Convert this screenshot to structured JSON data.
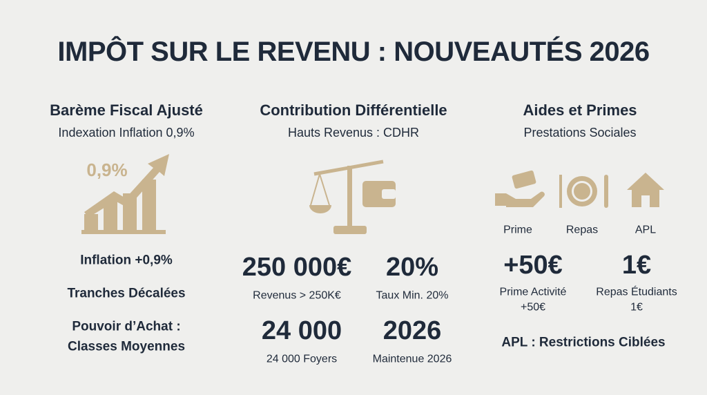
{
  "title": "IMPÔT SUR LE REVENU : NOUVEAUTÉS 2026",
  "columns": [
    {
      "heading": "Barème Fiscal Ajusté",
      "subheading": "Indexation Inflation 0,9%",
      "icon_label": "0,9%",
      "items": [
        [
          "Inflation +0,9%"
        ],
        [
          "Tranches Décalées"
        ],
        [
          "Pouvoir d’Achat :",
          "Classes Moyennes"
        ]
      ]
    },
    {
      "heading": "Contribution Différentielle",
      "subheading": "Hauts Revenus : CDHR",
      "stats": [
        {
          "value": "250 000€",
          "label": [
            "Revenus > 250K€"
          ]
        },
        {
          "value": "20%",
          "label": [
            "Taux Min. 20%"
          ]
        },
        {
          "value": "24 000",
          "label": [
            "24 000 Foyers"
          ]
        },
        {
          "value": "2026",
          "label": [
            "Maintenue 2026"
          ]
        }
      ]
    },
    {
      "heading": "Aides et Primes",
      "subheading": "Prestations Sociales",
      "icons": [
        "Prime",
        "Repas",
        "APL"
      ],
      "stats": [
        {
          "value": "+50€",
          "label": [
            "Prime Activité",
            "+50€"
          ]
        },
        {
          "value": "1€",
          "label": [
            "Repas Étudiants",
            "1€"
          ]
        }
      ],
      "footer": "APL : Restrictions Ciblées"
    }
  ]
}
